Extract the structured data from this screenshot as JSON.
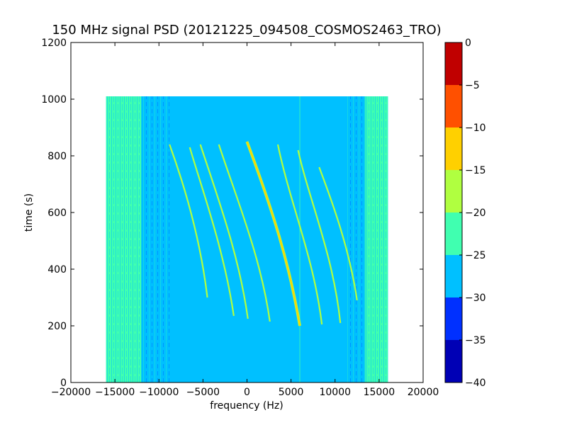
{
  "chart_data": {
    "type": "heatmap",
    "title": "150 MHz signal PSD (20121225_094508_COSMOS2463_TRO)",
    "xlabel": "frequency (Hz)",
    "ylabel": "time (s)",
    "xlim": [
      -20000,
      20000
    ],
    "ylim": [
      0,
      1200
    ],
    "xticks": [
      -20000,
      -15000,
      -10000,
      -5000,
      0,
      5000,
      10000,
      15000,
      20000
    ],
    "xtick_labels": [
      "−20000",
      "−15000",
      "−10000",
      "−5000",
      "0",
      "5000",
      "10000",
      "15000",
      "20000"
    ],
    "yticks": [
      0,
      200,
      400,
      600,
      800,
      1000,
      1200
    ],
    "ytick_labels": [
      "0",
      "200",
      "400",
      "600",
      "800",
      "1000",
      "1200"
    ],
    "data_extent": {
      "x": [
        -16000,
        16000
      ],
      "y": [
        0,
        1010
      ]
    },
    "colorbar": {
      "levels": [
        -40,
        -35,
        -30,
        -25,
        -20,
        -15,
        -10,
        -5,
        0
      ],
      "tick_labels": [
        "−40",
        "−35",
        "−30",
        "−25",
        "−20",
        "−15",
        "−10",
        "−5",
        "0"
      ],
      "colors": [
        "#0000b5",
        "#0030ff",
        "#00c0ff",
        "#40ffb0",
        "#b0ff40",
        "#ffd000",
        "#ff5000",
        "#c00000"
      ]
    },
    "background_level_color": "#00c0ff",
    "edge_level_color": "#40ffb0",
    "traces": [
      {
        "level": -15,
        "points": [
          [
            6000,
            200
          ],
          [
            4800,
            420
          ],
          [
            3000,
            600
          ],
          [
            0,
            850
          ]
        ]
      },
      {
        "level": -20,
        "points": [
          [
            2600,
            215
          ],
          [
            1600,
            440
          ],
          [
            -1200,
            650
          ],
          [
            -3200,
            840
          ]
        ]
      },
      {
        "level": -20,
        "points": [
          [
            8500,
            205
          ],
          [
            7600,
            440
          ],
          [
            4900,
            630
          ],
          [
            3500,
            840
          ]
        ]
      },
      {
        "level": -20,
        "points": [
          [
            10600,
            210
          ],
          [
            9800,
            450
          ],
          [
            7000,
            650
          ],
          [
            5800,
            820
          ]
        ]
      },
      {
        "level": -20,
        "points": [
          [
            100,
            225
          ],
          [
            -900,
            450
          ],
          [
            -3300,
            650
          ],
          [
            -5300,
            840
          ]
        ]
      },
      {
        "level": -20,
        "points": [
          [
            -1500,
            235
          ],
          [
            -2600,
            470
          ],
          [
            -5200,
            690
          ],
          [
            -6500,
            830
          ]
        ]
      },
      {
        "level": -20,
        "points": [
          [
            12500,
            290
          ],
          [
            11500,
            500
          ],
          [
            9000,
            690
          ],
          [
            8200,
            760
          ]
        ]
      },
      {
        "level": -20,
        "points": [
          [
            -4500,
            300
          ],
          [
            -5500,
            560
          ],
          [
            -8100,
            780
          ],
          [
            -8800,
            840
          ]
        ]
      }
    ]
  }
}
